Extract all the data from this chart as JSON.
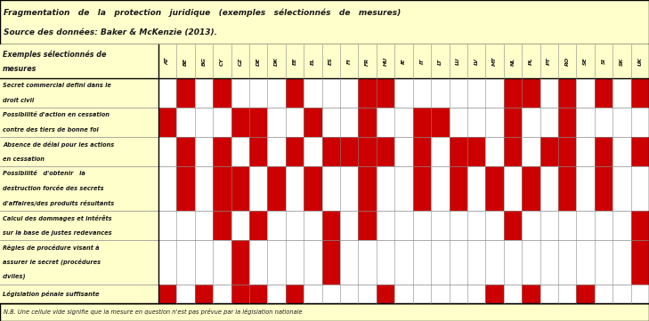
{
  "title_line1": "Fragmentation   de   la   protection   juridique   (exemples   sélectionnés   de   mesures)",
  "title_line2": "Source des données: Baker & McKenzie (2013).",
  "footnote": "N.B. Une cellule vide signifie que la mesure en question n'est pas prévue par la législation nationale",
  "col_header_label_1": "Exemples sélectionnés de",
  "col_header_label_2": "mesures",
  "columns": [
    "AT",
    "BE",
    "BG",
    "CY",
    "CZ",
    "DE",
    "DK",
    "EE",
    "EL",
    "ES",
    "FI",
    "FR",
    "HU",
    "IE",
    "IT",
    "LT",
    "LU",
    "LV",
    "MT",
    "NL",
    "PL",
    "PT",
    "RO",
    "SE",
    "SI",
    "SK",
    "UK"
  ],
  "rows": [
    [
      "Secret commercial defini dans le",
      "droit civil"
    ],
    [
      "Possibilité d'action en cessation",
      "contre des tiers de bonne foi"
    ],
    [
      "Absence de délai pour les actions",
      "en cessation"
    ],
    [
      "Possibilité   d'obtenir   la",
      "destruction forcée des secrets",
      "d'affaires/des produits résultants"
    ],
    [
      "Calcul des dommages et intérêts",
      "sur la base de justes redevances"
    ],
    [
      "Règles de procédure visant à",
      "assurer le secret (procédures",
      "civiles)"
    ],
    [
      "Législation pénale suffisante"
    ]
  ],
  "data": [
    [
      0,
      1,
      0,
      1,
      0,
      0,
      0,
      1,
      0,
      0,
      0,
      1,
      1,
      0,
      0,
      0,
      0,
      0,
      0,
      1,
      1,
      0,
      1,
      0,
      1,
      0,
      1
    ],
    [
      1,
      0,
      0,
      0,
      1,
      1,
      0,
      0,
      1,
      0,
      0,
      1,
      0,
      0,
      1,
      1,
      0,
      0,
      0,
      1,
      0,
      0,
      1,
      0,
      0,
      0,
      0
    ],
    [
      0,
      1,
      0,
      1,
      0,
      1,
      0,
      1,
      0,
      1,
      1,
      1,
      1,
      0,
      1,
      0,
      1,
      1,
      0,
      1,
      0,
      1,
      1,
      0,
      1,
      0,
      1
    ],
    [
      0,
      1,
      0,
      1,
      1,
      0,
      1,
      0,
      1,
      0,
      0,
      1,
      0,
      0,
      1,
      0,
      1,
      0,
      1,
      0,
      1,
      0,
      1,
      0,
      1,
      0,
      0
    ],
    [
      0,
      0,
      0,
      1,
      0,
      1,
      0,
      0,
      0,
      1,
      0,
      1,
      0,
      0,
      0,
      0,
      0,
      0,
      0,
      1,
      0,
      0,
      0,
      0,
      0,
      0,
      1
    ],
    [
      0,
      0,
      0,
      0,
      1,
      0,
      0,
      0,
      0,
      1,
      0,
      0,
      0,
      0,
      0,
      0,
      0,
      0,
      0,
      0,
      0,
      0,
      0,
      0,
      0,
      0,
      1
    ],
    [
      1,
      0,
      1,
      0,
      1,
      1,
      0,
      1,
      0,
      0,
      0,
      0,
      1,
      0,
      0,
      0,
      0,
      0,
      1,
      0,
      1,
      0,
      0,
      1,
      0,
      0,
      0
    ]
  ],
  "bg_yellow": "#ffffcc",
  "cell_red": "#cc0000",
  "cell_white": "#ffffff",
  "grid_color": "#888888",
  "border_color": "#000000",
  "text_color": "#1a1a1a"
}
